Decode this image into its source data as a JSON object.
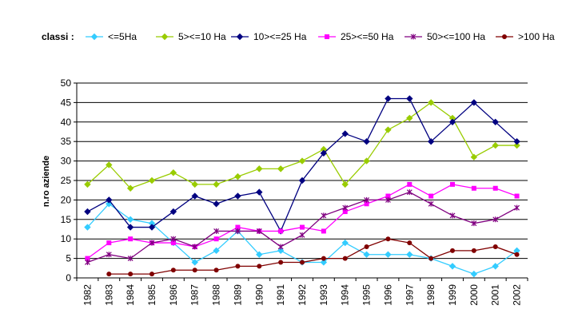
{
  "chart_data": {
    "type": "line",
    "legend_title": "classi :",
    "ylabel": "n.ro aziende",
    "xlabel": "",
    "ylim": [
      0,
      50
    ],
    "yticks": [
      0,
      5,
      10,
      15,
      20,
      25,
      30,
      35,
      40,
      45,
      50
    ],
    "grid": "horizontal",
    "legend_position": "top",
    "categories": [
      "1982",
      "1983",
      "1984",
      "1985",
      "1986",
      "1987",
      "1988",
      "1989",
      "1990",
      "1991",
      "1992",
      "1993",
      "1994",
      "1995",
      "1996",
      "1997",
      "1998",
      "1999",
      "2000",
      "2001",
      "2002"
    ],
    "series": [
      {
        "name": "<=5Ha",
        "color": "#33CCFF",
        "marker": "diamond",
        "values": [
          13,
          19,
          15,
          14,
          9,
          4,
          7,
          12,
          6,
          7,
          4,
          4,
          9,
          6,
          6,
          6,
          5,
          3,
          1,
          3,
          7
        ]
      },
      {
        "name": "5><=10 Ha",
        "color": "#99CC00",
        "marker": "diamond",
        "values": [
          24,
          29,
          23,
          25,
          27,
          24,
          24,
          26,
          28,
          28,
          30,
          33,
          24,
          30,
          38,
          41,
          45,
          41,
          31,
          34,
          34
        ]
      },
      {
        "name": "10><=25 Ha",
        "color": "#000080",
        "marker": "diamond",
        "values": [
          17,
          20,
          13,
          13,
          17,
          21,
          19,
          21,
          22,
          12,
          25,
          32,
          37,
          35,
          46,
          46,
          35,
          40,
          45,
          40,
          35
        ]
      },
      {
        "name": "25><=50 Ha",
        "color": "#FF00FF",
        "marker": "square",
        "values": [
          5,
          9,
          10,
          9,
          9,
          8,
          10,
          13,
          12,
          12,
          13,
          12,
          17,
          19,
          21,
          24,
          21,
          24,
          23,
          23,
          21
        ]
      },
      {
        "name": "50><=100 Ha",
        "color": "#800080",
        "marker": "star",
        "values": [
          4,
          6,
          5,
          9,
          10,
          8,
          12,
          12,
          12,
          8,
          11,
          16,
          18,
          20,
          20,
          22,
          19,
          16,
          14,
          15,
          18
        ]
      },
      {
        "name": ">100 Ha",
        "color": "#800000",
        "marker": "circle",
        "values": [
          null,
          1,
          1,
          1,
          2,
          2,
          2,
          3,
          3,
          4,
          4,
          5,
          5,
          8,
          10,
          9,
          5,
          7,
          7,
          8,
          6
        ]
      }
    ]
  }
}
